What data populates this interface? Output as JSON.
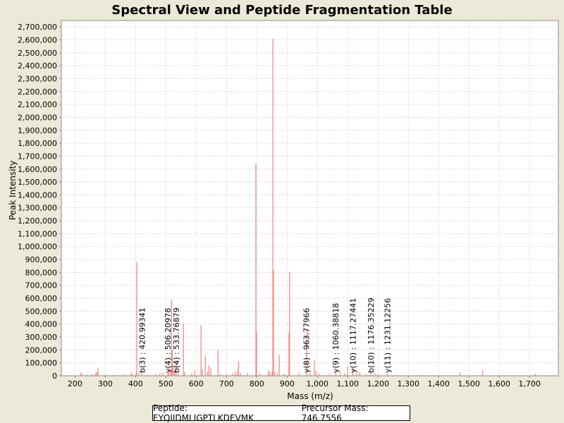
{
  "chart_data": {
    "type": "bar",
    "title": "Spectral View and Peptide Fragmentation Table",
    "xlabel": "Mass (m/z)",
    "ylabel": "Peak Intensity",
    "xlim": [
      155,
      1795
    ],
    "ylim": [
      0,
      2750000
    ],
    "x_ticks": [
      200,
      300,
      400,
      500,
      600,
      700,
      800,
      900,
      1000,
      1100,
      1200,
      1300,
      1400,
      1500,
      1600,
      1700
    ],
    "x_tick_labels": [
      "200",
      "300",
      "400",
      "500",
      "600",
      "700",
      "800",
      "900",
      "1,000",
      "1,100",
      "1,200",
      "1,300",
      "1,400",
      "1,500",
      "1,600",
      "1,700"
    ],
    "y_ticks": [
      0,
      100000,
      200000,
      300000,
      400000,
      500000,
      600000,
      700000,
      800000,
      900000,
      1000000,
      1100000,
      1200000,
      1300000,
      1400000,
      1500000,
      1600000,
      1700000,
      1800000,
      1900000,
      2000000,
      2100000,
      2200000,
      2300000,
      2400000,
      2500000,
      2600000,
      2700000
    ],
    "y_tick_labels": [
      "0",
      "100,000",
      "200,000",
      "300,000",
      "400,000",
      "500,000",
      "600,000",
      "700,000",
      "800,000",
      "900,000",
      "1,000,000",
      "1,100,000",
      "1,200,000",
      "1,300,000",
      "1,400,000",
      "1,500,000",
      "1,600,000",
      "1,700,000",
      "1,800,000",
      "1,900,000",
      "2,000,000",
      "2,100,000",
      "2,200,000",
      "2,300,000",
      "2,400,000",
      "2,500,000",
      "2,600,000",
      "2,700,000"
    ],
    "grid": true,
    "bar_color": "#f08080",
    "peaks": [
      {
        "mz": 218,
        "intensity": 25000
      },
      {
        "mz": 222,
        "intensity": 15000
      },
      {
        "mz": 240,
        "intensity": 10000
      },
      {
        "mz": 258,
        "intensity": 12000
      },
      {
        "mz": 268,
        "intensity": 20000
      },
      {
        "mz": 272,
        "intensity": 30000
      },
      {
        "mz": 276,
        "intensity": 60000
      },
      {
        "mz": 300,
        "intensity": 8000
      },
      {
        "mz": 330,
        "intensity": 10000
      },
      {
        "mz": 359,
        "intensity": 10000
      },
      {
        "mz": 385,
        "intensity": 25000
      },
      {
        "mz": 390,
        "intensity": 15000
      },
      {
        "mz": 402,
        "intensity": 20000
      },
      {
        "mz": 404,
        "intensity": 880000
      },
      {
        "mz": 410,
        "intensity": 20000
      },
      {
        "mz": 421,
        "intensity": 30000
      },
      {
        "mz": 440,
        "intensity": 10000
      },
      {
        "mz": 465,
        "intensity": 12000
      },
      {
        "mz": 480,
        "intensity": 20000
      },
      {
        "mz": 490,
        "intensity": 25000
      },
      {
        "mz": 506,
        "intensity": 20000
      },
      {
        "mz": 510,
        "intensity": 60000
      },
      {
        "mz": 515,
        "intensity": 30000
      },
      {
        "mz": 519,
        "intensity": 590000
      },
      {
        "mz": 521,
        "intensity": 200000
      },
      {
        "mz": 525,
        "intensity": 80000
      },
      {
        "mz": 530,
        "intensity": 40000
      },
      {
        "mz": 534,
        "intensity": 100000
      },
      {
        "mz": 540,
        "intensity": 20000
      },
      {
        "mz": 558,
        "intensity": 410000
      },
      {
        "mz": 562,
        "intensity": 30000
      },
      {
        "mz": 585,
        "intensity": 20000
      },
      {
        "mz": 595,
        "intensity": 40000
      },
      {
        "mz": 616,
        "intensity": 390000
      },
      {
        "mz": 620,
        "intensity": 50000
      },
      {
        "mz": 630,
        "intensity": 160000
      },
      {
        "mz": 638,
        "intensity": 30000
      },
      {
        "mz": 642,
        "intensity": 80000
      },
      {
        "mz": 648,
        "intensity": 60000
      },
      {
        "mz": 672,
        "intensity": 200000
      },
      {
        "mz": 680,
        "intensity": 15000
      },
      {
        "mz": 700,
        "intensity": 10000
      },
      {
        "mz": 720,
        "intensity": 20000
      },
      {
        "mz": 728,
        "intensity": 30000
      },
      {
        "mz": 735,
        "intensity": 40000
      },
      {
        "mz": 740,
        "intensity": 110000
      },
      {
        "mz": 746,
        "intensity": 20000
      },
      {
        "mz": 770,
        "intensity": 20000
      },
      {
        "mz": 797,
        "intensity": 1640000
      },
      {
        "mz": 799,
        "intensity": 340000
      },
      {
        "mz": 810,
        "intensity": 20000
      },
      {
        "mz": 838,
        "intensity": 40000
      },
      {
        "mz": 842,
        "intensity": 25000
      },
      {
        "mz": 850,
        "intensity": 30000
      },
      {
        "mz": 853,
        "intensity": 2610000
      },
      {
        "mz": 855,
        "intensity": 820000
      },
      {
        "mz": 860,
        "intensity": 30000
      },
      {
        "mz": 868,
        "intensity": 20000
      },
      {
        "mz": 874,
        "intensity": 160000
      },
      {
        "mz": 890,
        "intensity": 15000
      },
      {
        "mz": 906,
        "intensity": 330000
      },
      {
        "mz": 908,
        "intensity": 805000
      },
      {
        "mz": 940,
        "intensity": 20000
      },
      {
        "mz": 965,
        "intensity": 360000
      },
      {
        "mz": 975,
        "intensity": 20000
      },
      {
        "mz": 990,
        "intensity": 120000
      },
      {
        "mz": 995,
        "intensity": 40000
      },
      {
        "mz": 1005,
        "intensity": 20000
      },
      {
        "mz": 1040,
        "intensity": 15000
      },
      {
        "mz": 1061,
        "intensity": 40000
      },
      {
        "mz": 1075,
        "intensity": 20000
      },
      {
        "mz": 1090,
        "intensity": 20000
      },
      {
        "mz": 1100,
        "intensity": 70000
      },
      {
        "mz": 1117,
        "intensity": 60000
      },
      {
        "mz": 1130,
        "intensity": 20000
      },
      {
        "mz": 1140,
        "intensity": 30000
      },
      {
        "mz": 1160,
        "intensity": 15000
      },
      {
        "mz": 1176,
        "intensity": 30000
      },
      {
        "mz": 1190,
        "intensity": 20000
      },
      {
        "mz": 1200,
        "intensity": 10000
      },
      {
        "mz": 1231,
        "intensity": 20000
      },
      {
        "mz": 1260,
        "intensity": 8000
      },
      {
        "mz": 1350,
        "intensity": 6000
      },
      {
        "mz": 1470,
        "intensity": 25000
      },
      {
        "mz": 1545,
        "intensity": 45000
      },
      {
        "mz": 1720,
        "intensity": 15000
      }
    ],
    "annotations": [
      {
        "label": "b(3) : 420.99341",
        "mz": 421.0
      },
      {
        "label": "y(4) : 506.20978",
        "mz": 506.2
      },
      {
        "label": "b(4) : 533.76879",
        "mz": 533.8
      },
      {
        "label": "y(8) : 963.77966",
        "mz": 963.8
      },
      {
        "label": "y(9) : 1060.38818",
        "mz": 1060.4
      },
      {
        "label": "y(10) : 1117.27441",
        "mz": 1117.3
      },
      {
        "label": "b(10) : 1176.35229",
        "mz": 1176.4
      },
      {
        "label": "y(11) : 1231.12256",
        "mz": 1231.1
      }
    ]
  },
  "info": {
    "peptide": "Peptide: EYQIIDMLIGPTLKDEVMK",
    "precursor": "Precursor Mass: 746.7556"
  }
}
